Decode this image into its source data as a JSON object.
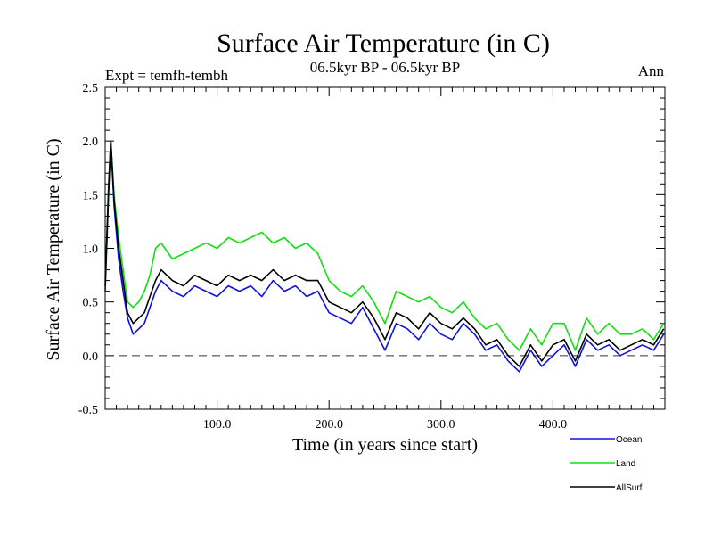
{
  "chart_data": {
    "type": "line",
    "title": "Surface Air Temperature (in C)",
    "subtitle": "06.5kyr BP - 06.5kyr BP",
    "experiment_label": "Expt = temfh-tembh",
    "season_label": "Ann",
    "xlabel": "Time (in years since start)",
    "ylabel": "Surface Air Temperature (in C)",
    "xlim": [
      0,
      500
    ],
    "ylim": [
      -0.5,
      2.5
    ],
    "x_ticks": [
      100,
      200,
      300,
      400
    ],
    "x_tick_labels": [
      "100.0",
      "200.0",
      "300.0",
      "400.0"
    ],
    "y_ticks": [
      -0.5,
      0.0,
      0.5,
      1.0,
      1.5,
      2.0,
      2.5
    ],
    "y_tick_labels": [
      "-0.5",
      "0.0",
      "0.5",
      "1.0",
      "1.5",
      "2.0",
      "2.5"
    ],
    "reference_line": {
      "y": 0.0,
      "style": "dashed"
    },
    "series": [
      {
        "name": "Ocean",
        "color": "#1010e0",
        "x": [
          0,
          3,
          5,
          8,
          12,
          16,
          20,
          25,
          30,
          35,
          40,
          45,
          50,
          60,
          70,
          80,
          90,
          100,
          110,
          120,
          130,
          140,
          150,
          160,
          170,
          180,
          190,
          200,
          210,
          220,
          230,
          240,
          250,
          260,
          270,
          280,
          290,
          300,
          310,
          320,
          330,
          340,
          350,
          360,
          370,
          380,
          390,
          400,
          410,
          420,
          430,
          440,
          450,
          460,
          470,
          480,
          490,
          499
        ],
        "values": [
          0.6,
          1.5,
          2.0,
          1.4,
          0.9,
          0.6,
          0.35,
          0.2,
          0.25,
          0.3,
          0.45,
          0.6,
          0.7,
          0.6,
          0.55,
          0.65,
          0.6,
          0.55,
          0.65,
          0.6,
          0.65,
          0.55,
          0.7,
          0.6,
          0.65,
          0.55,
          0.6,
          0.4,
          0.35,
          0.3,
          0.45,
          0.25,
          0.05,
          0.3,
          0.25,
          0.15,
          0.3,
          0.2,
          0.15,
          0.3,
          0.2,
          0.05,
          0.1,
          -0.05,
          -0.15,
          0.05,
          -0.1,
          0.0,
          0.1,
          -0.1,
          0.15,
          0.05,
          0.1,
          0.0,
          0.05,
          0.1,
          0.05,
          0.2
        ]
      },
      {
        "name": "Land",
        "color": "#10e010",
        "x": [
          0,
          3,
          5,
          8,
          12,
          16,
          20,
          25,
          30,
          35,
          40,
          45,
          50,
          60,
          70,
          80,
          90,
          100,
          110,
          120,
          130,
          140,
          150,
          160,
          170,
          180,
          190,
          200,
          210,
          220,
          230,
          240,
          250,
          260,
          270,
          280,
          290,
          300,
          310,
          320,
          330,
          340,
          350,
          360,
          370,
          380,
          390,
          400,
          410,
          420,
          430,
          440,
          450,
          460,
          470,
          480,
          490,
          499
        ],
        "values": [
          0.7,
          1.6,
          2.0,
          1.5,
          1.1,
          0.8,
          0.5,
          0.45,
          0.5,
          0.6,
          0.75,
          1.0,
          1.05,
          0.9,
          0.95,
          1.0,
          1.05,
          1.0,
          1.1,
          1.05,
          1.1,
          1.15,
          1.05,
          1.1,
          1.0,
          1.05,
          0.95,
          0.7,
          0.6,
          0.55,
          0.65,
          0.5,
          0.3,
          0.6,
          0.55,
          0.5,
          0.55,
          0.45,
          0.4,
          0.5,
          0.35,
          0.25,
          0.3,
          0.15,
          0.05,
          0.25,
          0.1,
          0.3,
          0.3,
          0.05,
          0.35,
          0.2,
          0.3,
          0.2,
          0.2,
          0.25,
          0.15,
          0.3
        ]
      },
      {
        "name": "AllSurf",
        "color": "#000000",
        "x": [
          0,
          3,
          5,
          8,
          12,
          16,
          20,
          25,
          30,
          35,
          40,
          45,
          50,
          60,
          70,
          80,
          90,
          100,
          110,
          120,
          130,
          140,
          150,
          160,
          170,
          180,
          190,
          200,
          210,
          220,
          230,
          240,
          250,
          260,
          270,
          280,
          290,
          300,
          310,
          320,
          330,
          340,
          350,
          360,
          370,
          380,
          390,
          400,
          410,
          420,
          430,
          440,
          450,
          460,
          470,
          480,
          490,
          499
        ],
        "values": [
          0.65,
          1.55,
          2.0,
          1.45,
          1.0,
          0.7,
          0.4,
          0.3,
          0.35,
          0.4,
          0.55,
          0.7,
          0.8,
          0.7,
          0.65,
          0.75,
          0.7,
          0.65,
          0.75,
          0.7,
          0.75,
          0.7,
          0.8,
          0.7,
          0.75,
          0.7,
          0.7,
          0.5,
          0.45,
          0.4,
          0.5,
          0.35,
          0.15,
          0.4,
          0.35,
          0.25,
          0.4,
          0.3,
          0.25,
          0.35,
          0.25,
          0.1,
          0.15,
          0.0,
          -0.1,
          0.1,
          -0.05,
          0.1,
          0.15,
          -0.05,
          0.2,
          0.1,
          0.15,
          0.05,
          0.1,
          0.15,
          0.1,
          0.25
        ]
      }
    ],
    "legend": {
      "position": "below-right",
      "entries": [
        "Ocean",
        "Land",
        "AllSurf"
      ]
    }
  }
}
